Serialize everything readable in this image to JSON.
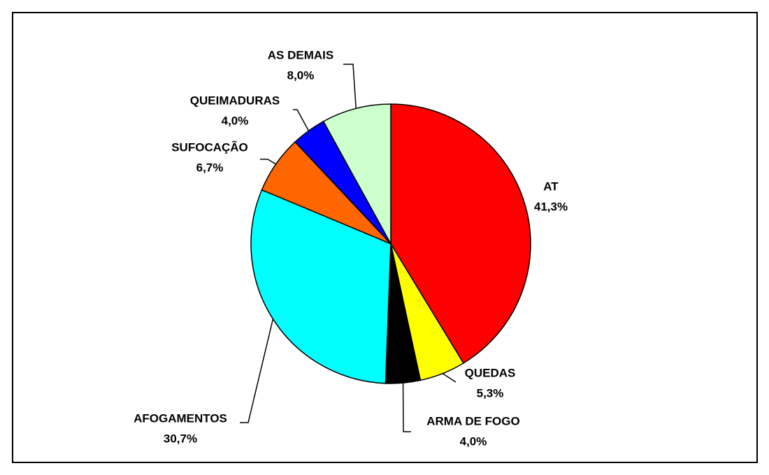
{
  "chart_data": {
    "type": "pie",
    "categories": [
      "AT",
      "QUEDAS",
      "ARMA DE FOGO",
      "AFOGAMENTOS",
      "SUFOCAÇÃO",
      "QUEIMADURAS",
      "AS DEMAIS"
    ],
    "values": [
      41.3,
      5.3,
      4.0,
      30.7,
      6.7,
      4.0,
      8.0
    ],
    "value_labels": [
      "41,3%",
      "5,3%",
      "4,0%",
      "30,7%",
      "6,7%",
      "4,0%",
      "8,0%"
    ],
    "colors": [
      "#ff0000",
      "#ffff00",
      "#000000",
      "#00ffff",
      "#ff6600",
      "#0000ff",
      "#ccffcc"
    ]
  }
}
